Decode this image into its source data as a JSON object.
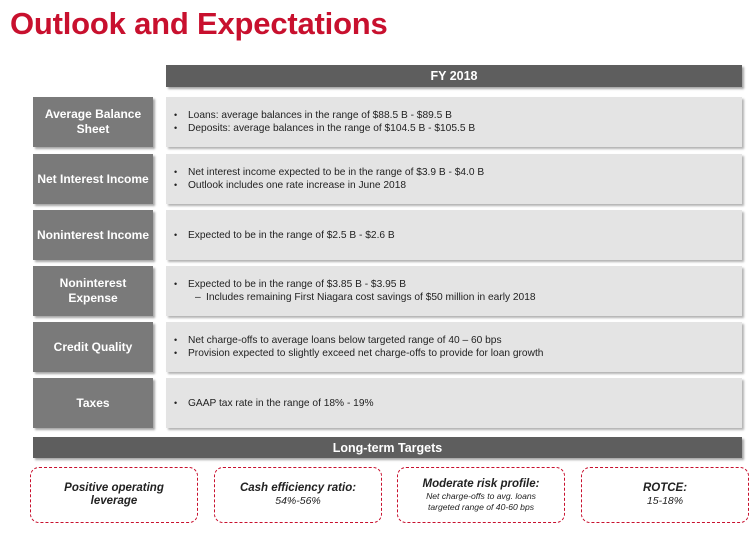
{
  "title": "Outlook and Expectations",
  "column_header": "FY 2018",
  "rows": [
    {
      "label_lines": [
        "Average Balance",
        "Sheet"
      ],
      "items": [
        "Loans: average balances in the range of $88.5 B - $89.5 B",
        "Deposits: average balances in the range of $104.5 B - $105.5 B"
      ]
    },
    {
      "label_lines": [
        "Net Interest Income"
      ],
      "items": [
        "Net interest income expected to be in the range of $3.9 B - $4.0 B",
        "Outlook includes one rate increase in June 2018"
      ]
    },
    {
      "label_lines": [
        "Noninterest Income"
      ],
      "items": [
        "Expected to be in the range of $2.5 B - $2.6 B"
      ]
    },
    {
      "label_lines": [
        "Noninterest",
        "Expense"
      ],
      "items": [
        "Expected to be in the range of $3.85 B - $3.95 B"
      ],
      "sub_items": [
        "Includes remaining First Niagara cost savings of $50 million in early 2018"
      ]
    },
    {
      "label_lines": [
        "Credit Quality"
      ],
      "items": [
        "Net charge-offs to average loans below targeted range of 40 – 60 bps",
        "Provision expected to slightly exceed net charge-offs to provide for loan growth"
      ]
    },
    {
      "label_lines": [
        "Taxes"
      ],
      "items": [
        "GAAP tax rate in the range of 18% - 19%"
      ]
    }
  ],
  "long_term": {
    "header": "Long-term Targets",
    "targets": [
      {
        "title_lines": [
          "Positive operating",
          "leverage"
        ],
        "value": ""
      },
      {
        "title_lines": [
          "Cash efficiency ratio:"
        ],
        "value": "54%-56%"
      },
      {
        "title_lines": [
          "Moderate risk profile:"
        ],
        "sub_lines": [
          "Net charge-offs to avg. loans",
          "targeted range of 40-60 bps"
        ]
      },
      {
        "title_lines": [
          "ROTCE:"
        ],
        "value": "15-18%"
      }
    ]
  },
  "colors": {
    "title": "#c8102e",
    "header_bg": "#5e5e5e",
    "label_bg": "#7a7a7a",
    "content_bg": "#e4e4e4",
    "dash_border": "#c8102e"
  }
}
